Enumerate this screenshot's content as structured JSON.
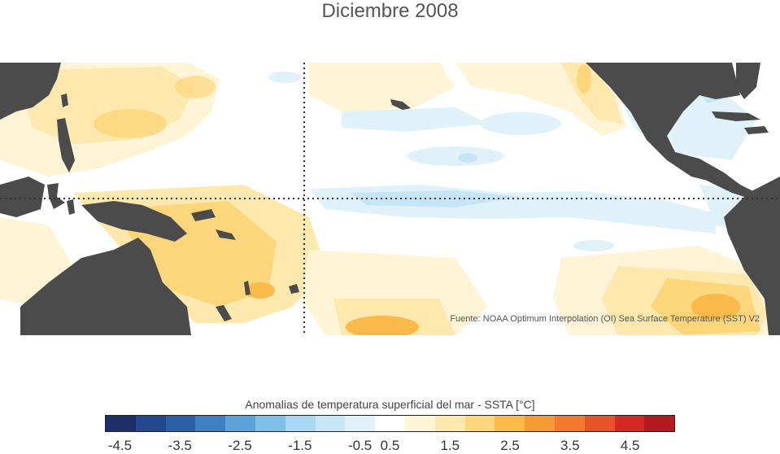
{
  "title": "Diciembre 2008",
  "source_note": "Fuente: NOAA Optimum Interpolation (OI) Sea Surface Temperature (SST) V2",
  "colorbar": {
    "label": "Anomalias de temperatura superficial del mar - SSTA  [°C]",
    "colors": [
      "#1c2f66",
      "#23468e",
      "#2c5fa6",
      "#3f80c2",
      "#5ba3da",
      "#80bfe8",
      "#a8d8f3",
      "#c6e6f7",
      "#e0f1fa",
      "#ffffff",
      "#fff4d6",
      "#ffe8ad",
      "#fdd57a",
      "#fbb94a",
      "#f89a33",
      "#f4792c",
      "#e65328",
      "#d42a25",
      "#b31a1f"
    ],
    "tick_labels": [
      "-4.5",
      "-3.5",
      "-2.5",
      "-1.5",
      "-0.5",
      "0.5",
      "1.5",
      "2.5",
      "3.5",
      "4.5"
    ]
  },
  "map_colors": {
    "land": "#4b4b4b",
    "ocean_neutral": "#ffffff",
    "warm_light": "#fff4d6",
    "warm": "#ffe8ad",
    "warm_mid": "#fdd57a",
    "warm_strong": "#fbb94a",
    "warm_core": "#f89a33",
    "cool_light": "#e0f1fa",
    "cool": "#c6e6f7",
    "cool_mid": "#a8d8f3",
    "guides": "#333333"
  }
}
